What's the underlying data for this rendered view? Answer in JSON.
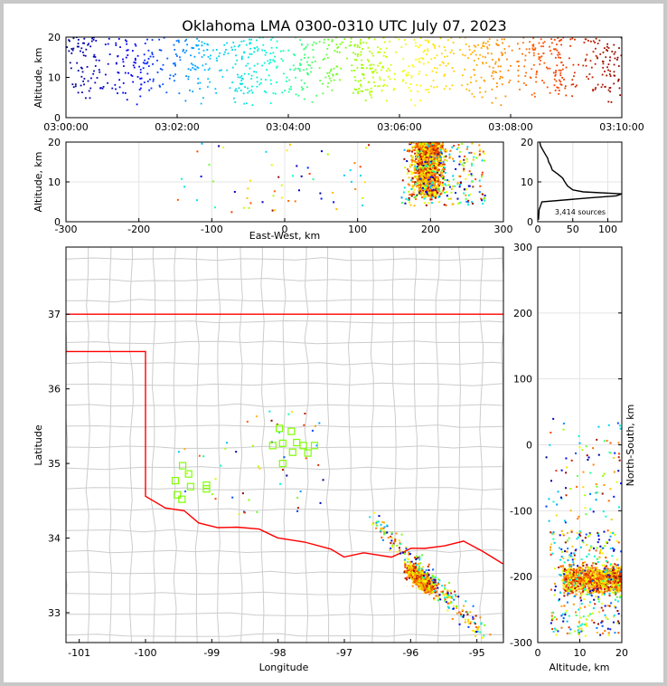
{
  "title": "Oklahoma LMA 0300-0310 UTC July 07, 2023",
  "colors": {
    "time_scale": [
      "#00008b",
      "#0000ff",
      "#00bfff",
      "#00ffd0",
      "#7fff00",
      "#ffff00",
      "#ffa500",
      "#ff4500",
      "#8b0000"
    ],
    "state_border": "#ff0000",
    "county_lines": "#cccccc",
    "station_marker": "#7fff00",
    "histogram_line": "#000000"
  },
  "chart_data": [
    {
      "id": "time-height",
      "type": "scatter",
      "xlabel": "",
      "ylabel": "Altitude, km",
      "x_ticks": [
        "03:00:00",
        "03:02:00",
        "03:04:00",
        "03:06:00",
        "03:08:00",
        "03:10:00"
      ],
      "xlim": [
        "03:00:00",
        "03:10:00"
      ],
      "ylim": [
        0,
        20
      ],
      "y_ticks": [
        0,
        10,
        20
      ],
      "series_description": "lightning sources colored by time, altitudes mostly 6-20 km",
      "approx_altitude_range_km": [
        6,
        20
      ]
    },
    {
      "id": "east-west-altitude",
      "type": "scatter",
      "xlabel": "East-West, km",
      "ylabel": "Altitude, km",
      "xlim": [
        -300,
        300
      ],
      "x_ticks": [
        -300,
        -200,
        -100,
        0,
        100,
        200,
        300
      ],
      "ylim": [
        0,
        20
      ],
      "y_ticks": [
        0,
        10,
        20
      ],
      "main_cluster": {
        "x_km": [
          150,
          260
        ],
        "alt_km": [
          5,
          20
        ]
      }
    },
    {
      "id": "altitude-histogram",
      "type": "line",
      "xlim": [
        0,
        120
      ],
      "x_ticks": [
        0,
        50,
        100
      ],
      "ylim": [
        0,
        20
      ],
      "y_ticks": [
        0,
        10,
        20
      ],
      "annotation": "3,414 sources",
      "profile": [
        {
          "alt": 0.5,
          "count": 1
        },
        {
          "alt": 3,
          "count": 2
        },
        {
          "alt": 5,
          "count": 6
        },
        {
          "alt": 6,
          "count": 75
        },
        {
          "alt": 6.5,
          "count": 112
        },
        {
          "alt": 7,
          "count": 120
        },
        {
          "alt": 7.5,
          "count": 65
        },
        {
          "alt": 8,
          "count": 50
        },
        {
          "alt": 9,
          "count": 40
        },
        {
          "alt": 10,
          "count": 33
        },
        {
          "alt": 11,
          "count": 30
        },
        {
          "alt": 12,
          "count": 24
        },
        {
          "alt": 13,
          "count": 22
        },
        {
          "alt": 14,
          "count": 18
        },
        {
          "alt": 15,
          "count": 15
        },
        {
          "alt": 16,
          "count": 12
        },
        {
          "alt": 17,
          "count": 10
        },
        {
          "alt": 18,
          "count": 8
        },
        {
          "alt": 19,
          "count": 5
        },
        {
          "alt": 20,
          "count": 3
        }
      ]
    },
    {
      "id": "plan-view",
      "type": "scatter",
      "xlabel": "Longitude",
      "ylabel": "Latitude",
      "xlim": [
        -101.2,
        -94.6
      ],
      "x_ticks": [
        -101,
        -100,
        -99,
        -98,
        -97,
        -96,
        -95
      ],
      "ylim": [
        32.6,
        37.9
      ],
      "y_ticks": [
        33,
        34,
        35,
        36,
        37
      ],
      "main_cluster": {
        "lon": -95.85,
        "lat": 33.45
      },
      "stations": [
        {
          "lon": -97.98,
          "lat": 35.47
        },
        {
          "lon": -97.8,
          "lat": 35.43
        },
        {
          "lon": -98.08,
          "lat": 35.24
        },
        {
          "lon": -97.93,
          "lat": 35.27
        },
        {
          "lon": -97.72,
          "lat": 35.28
        },
        {
          "lon": -97.62,
          "lat": 35.24
        },
        {
          "lon": -97.45,
          "lat": 35.24
        },
        {
          "lon": -97.78,
          "lat": 35.15
        },
        {
          "lon": -97.55,
          "lat": 35.14
        },
        {
          "lon": -97.93,
          "lat": 35.0
        },
        {
          "lon": -99.44,
          "lat": 34.97
        },
        {
          "lon": -99.35,
          "lat": 34.86
        },
        {
          "lon": -99.55,
          "lat": 34.77
        },
        {
          "lon": -99.32,
          "lat": 34.69
        },
        {
          "lon": -99.08,
          "lat": 34.71
        },
        {
          "lon": -99.08,
          "lat": 34.66
        },
        {
          "lon": -99.52,
          "lat": 34.58
        },
        {
          "lon": -99.45,
          "lat": 34.52
        }
      ]
    },
    {
      "id": "altitude-north-south",
      "type": "scatter",
      "xlabel": "Altitude, km",
      "ylabel": "North-South, km",
      "xlim": [
        0,
        20
      ],
      "x_ticks": [
        0,
        10,
        20
      ],
      "ylim": [
        -300,
        300
      ],
      "y_ticks": [
        -300,
        -200,
        -100,
        0,
        100,
        200,
        300
      ],
      "main_cluster": {
        "alt_km": [
          5,
          20
        ],
        "ns_km": [
          -260,
          -170
        ]
      }
    }
  ]
}
